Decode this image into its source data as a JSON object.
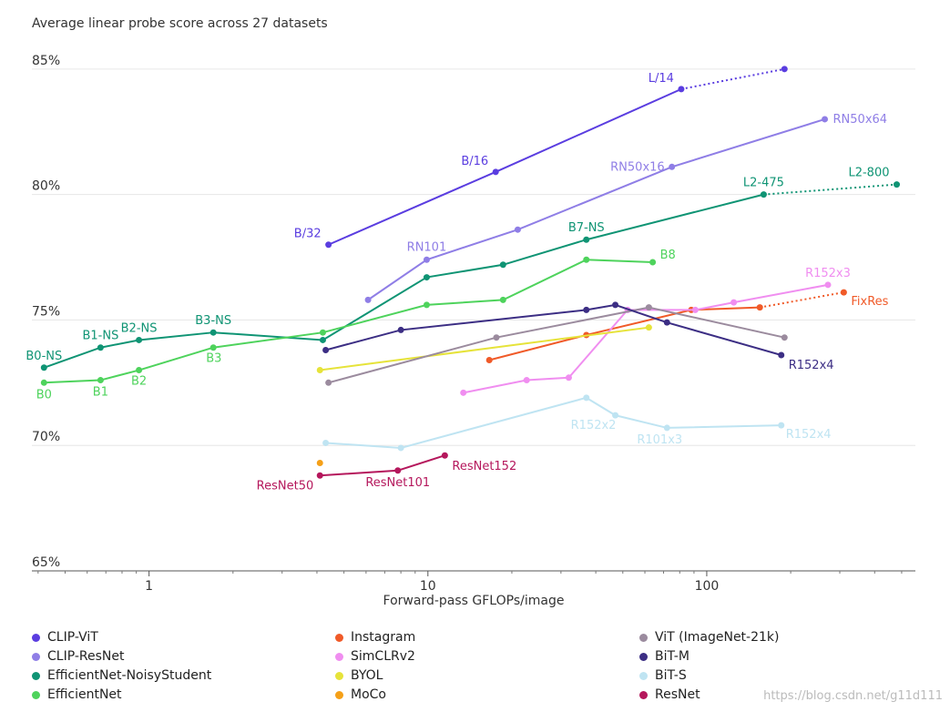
{
  "chart_data": {
    "type": "line",
    "title": "Average linear probe score across 27 datasets",
    "xlabel": "Forward-pass GFLOPs/image",
    "ylabel": "",
    "x_scale": "log",
    "xlim": [
      0.38,
      560
    ],
    "ylim": [
      65,
      86.3
    ],
    "x_ticks": [
      {
        "value": 1,
        "label": "1"
      },
      {
        "value": 10,
        "label": "10"
      },
      {
        "value": 100,
        "label": "100"
      }
    ],
    "y_ticks": [
      {
        "value": 65,
        "label": "65%"
      },
      {
        "value": 70,
        "label": "70%"
      },
      {
        "value": 75,
        "label": "75%"
      },
      {
        "value": 80,
        "label": "80%"
      },
      {
        "value": 85,
        "label": "85%"
      }
    ],
    "grid": "horizontal",
    "legend_position": "bottom",
    "series": [
      {
        "name": "CLIP-ViT",
        "color": "#5a3de0",
        "points": [
          {
            "x": 4.4,
            "y": 78.0,
            "label": "B/32"
          },
          {
            "x": 17.5,
            "y": 80.9,
            "label": "B/16"
          },
          {
            "x": 81,
            "y": 84.2,
            "label": "L/14"
          }
        ],
        "extension": [
          {
            "x": 81,
            "y": 84.2
          },
          {
            "x": 190,
            "y": 85.0
          }
        ]
      },
      {
        "name": "CLIP-ResNet",
        "color": "#8f7ee6",
        "points": [
          {
            "x": 6.1,
            "y": 75.8
          },
          {
            "x": 9.9,
            "y": 77.4,
            "label": "RN101"
          },
          {
            "x": 21,
            "y": 78.6
          },
          {
            "x": 75,
            "y": 81.1,
            "label": "RN50x16"
          },
          {
            "x": 265,
            "y": 83.0,
            "label": "RN50x64"
          }
        ]
      },
      {
        "name": "EfficientNet-NoisyStudent",
        "color": "#0f9474",
        "points": [
          {
            "x": 0.42,
            "y": 73.1,
            "label": "B0-NS"
          },
          {
            "x": 0.67,
            "y": 73.9,
            "label": "B1-NS"
          },
          {
            "x": 0.92,
            "y": 74.2,
            "label": "B2-NS"
          },
          {
            "x": 1.7,
            "y": 74.5,
            "label": "B3-NS"
          },
          {
            "x": 4.2,
            "y": 74.2
          },
          {
            "x": 9.9,
            "y": 76.7
          },
          {
            "x": 18.6,
            "y": 77.2
          },
          {
            "x": 37,
            "y": 78.2,
            "label": "B7-NS"
          },
          {
            "x": 160,
            "y": 80.0,
            "label": "L2-475"
          }
        ],
        "extension": [
          {
            "x": 160,
            "y": 80.0
          },
          {
            "x": 480,
            "y": 80.4,
            "label": "L2-800"
          }
        ]
      },
      {
        "name": "EfficientNet",
        "color": "#4ed35c",
        "points": [
          {
            "x": 0.42,
            "y": 72.5,
            "label": "B0"
          },
          {
            "x": 0.67,
            "y": 72.6,
            "label": "B1"
          },
          {
            "x": 0.92,
            "y": 73.0,
            "label": "B2"
          },
          {
            "x": 1.7,
            "y": 73.9,
            "label": "B3"
          },
          {
            "x": 4.2,
            "y": 74.5
          },
          {
            "x": 9.9,
            "y": 75.6
          },
          {
            "x": 18.6,
            "y": 75.8
          },
          {
            "x": 37,
            "y": 77.4
          },
          {
            "x": 64,
            "y": 77.3,
            "label": "B8"
          }
        ]
      },
      {
        "name": "Instagram",
        "color": "#f05a28",
        "points": [
          {
            "x": 16.6,
            "y": 73.4
          },
          {
            "x": 37,
            "y": 74.4
          },
          {
            "x": 88,
            "y": 75.4
          },
          {
            "x": 155,
            "y": 75.5
          }
        ],
        "extension": [
          {
            "x": 155,
            "y": 75.5
          },
          {
            "x": 310,
            "y": 76.1,
            "label": "FixRes"
          }
        ]
      },
      {
        "name": "SimCLRv2",
        "color": "#f08ef0",
        "points": [
          {
            "x": 13.4,
            "y": 72.1
          },
          {
            "x": 22.6,
            "y": 72.6
          },
          {
            "x": 32,
            "y": 72.7
          },
          {
            "x": 52,
            "y": 75.4
          },
          {
            "x": 91,
            "y": 75.4
          },
          {
            "x": 125,
            "y": 75.7
          },
          {
            "x": 272,
            "y": 76.4,
            "label": "R152x3"
          }
        ]
      },
      {
        "name": "BYOL",
        "color": "#e6e33a",
        "points": [
          {
            "x": 4.1,
            "y": 73.0
          },
          {
            "x": 62,
            "y": 74.7
          }
        ]
      },
      {
        "name": "MoCo",
        "color": "#f5a018",
        "points": [
          {
            "x": 4.1,
            "y": 69.3
          }
        ]
      },
      {
        "name": "ViT (ImageNet-21k)",
        "color": "#9b8b9e",
        "points": [
          {
            "x": 4.4,
            "y": 72.5
          },
          {
            "x": 17.6,
            "y": 74.3
          },
          {
            "x": 62,
            "y": 75.5
          },
          {
            "x": 190,
            "y": 74.3
          }
        ]
      },
      {
        "name": "BiT-M",
        "color": "#3c2e84",
        "points": [
          {
            "x": 4.3,
            "y": 73.8
          },
          {
            "x": 8,
            "y": 74.6
          },
          {
            "x": 37,
            "y": 75.4
          },
          {
            "x": 47,
            "y": 75.6
          },
          {
            "x": 72,
            "y": 74.9
          },
          {
            "x": 185,
            "y": 73.6,
            "label": "R152x4"
          }
        ]
      },
      {
        "name": "BiT-S",
        "color": "#bfe4f2",
        "points": [
          {
            "x": 4.3,
            "y": 70.1
          },
          {
            "x": 8,
            "y": 69.9
          },
          {
            "x": 37,
            "y": 71.9
          },
          {
            "x": 47,
            "y": 71.2,
            "label": "R152x2"
          },
          {
            "x": 72,
            "y": 70.7,
            "label": "R101x3"
          },
          {
            "x": 185,
            "y": 70.8,
            "label": "R152x4"
          }
        ]
      },
      {
        "name": "ResNet",
        "color": "#b5175c",
        "points": [
          {
            "x": 4.1,
            "y": 68.8,
            "label": "ResNet50"
          },
          {
            "x": 7.8,
            "y": 69.0,
            "label": "ResNet101"
          },
          {
            "x": 11.5,
            "y": 69.6,
            "label": "ResNet152"
          }
        ]
      }
    ]
  },
  "watermark": "https://blog.csdn.net/g11d111"
}
